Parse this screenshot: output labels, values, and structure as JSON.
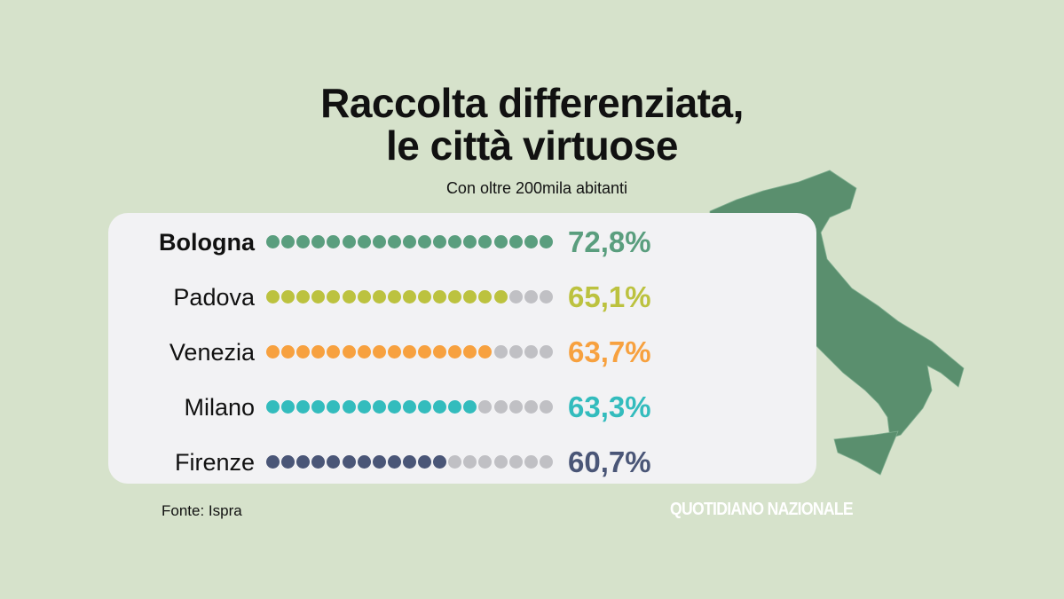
{
  "title_line1": "Raccolta differenziata,",
  "title_line2": "le città virtuose",
  "subtitle": "Con oltre 200mila abitanti",
  "source": "Fonte: Ispra",
  "logo": "QUOTIDIANO NAZIONALE",
  "colors": {
    "background": "#d6e2cb",
    "panel": "#f2f2f4",
    "map": "#5a8f6e",
    "empty_dot": "#c0c0c4"
  },
  "chart_data": {
    "type": "dot-bar",
    "total_dots": 19,
    "rows": [
      {
        "city": "Bologna",
        "value": 72.8,
        "label": "72,8%",
        "filled_dots": 19,
        "color": "#5a9e7e",
        "bold": true
      },
      {
        "city": "Padova",
        "value": 65.1,
        "label": "65,1%",
        "filled_dots": 16,
        "color": "#bcc23f"
      },
      {
        "city": "Venezia",
        "value": 63.7,
        "label": "63,7%",
        "filled_dots": 15,
        "color": "#f7a13f"
      },
      {
        "city": "Milano",
        "value": 63.3,
        "label": "63,3%",
        "filled_dots": 14,
        "color": "#33bcbd"
      },
      {
        "city": "Firenze",
        "value": 60.7,
        "label": "60,7%",
        "filled_dots": 12,
        "color": "#4a5677"
      }
    ]
  }
}
